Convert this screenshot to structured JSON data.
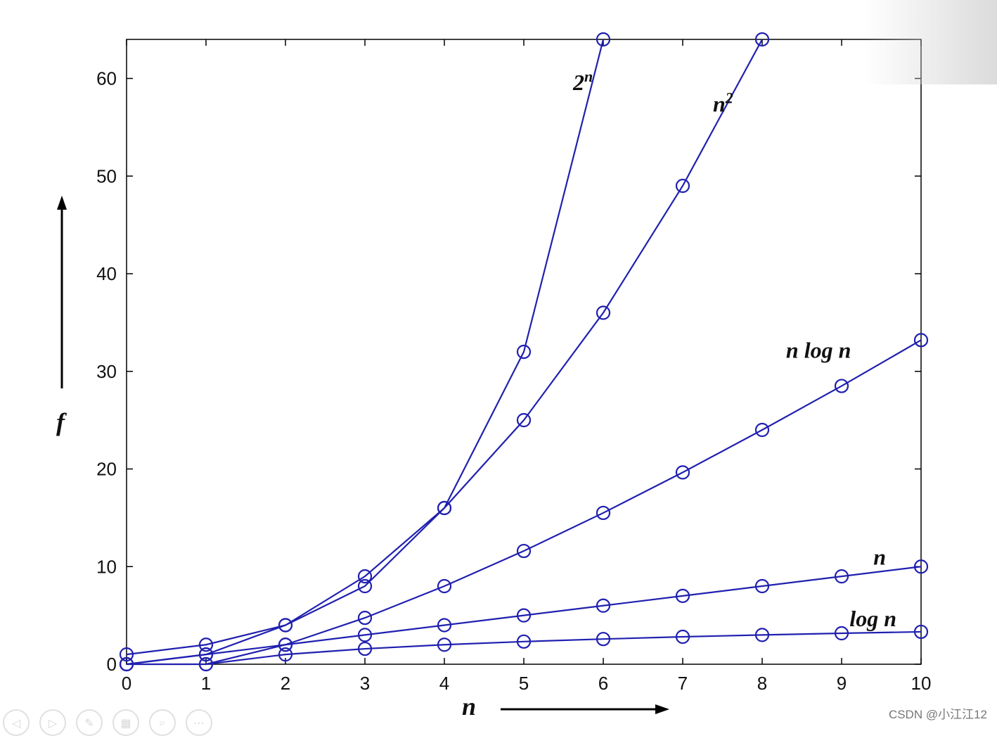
{
  "chart_data": {
    "type": "line",
    "xlim": [
      0,
      10
    ],
    "ylim": [
      0,
      64
    ],
    "x_ticks": [
      "0",
      "1",
      "2",
      "3",
      "4",
      "5",
      "6",
      "7",
      "8",
      "9",
      "10"
    ],
    "y_ticks": [
      "0",
      "10",
      "20",
      "30",
      "40",
      "50",
      "60"
    ],
    "xlabel": "n",
    "ylabel": "f",
    "marker": "circle",
    "line_color": "#2020b0",
    "series": [
      {
        "name": "2ⁿ",
        "x": [
          0,
          1,
          2,
          3,
          4,
          5,
          6
        ],
        "values": [
          1,
          2,
          4,
          8,
          16,
          32,
          64
        ]
      },
      {
        "name": "n²",
        "x": [
          0,
          1,
          2,
          3,
          4,
          5,
          6,
          7,
          8
        ],
        "values": [
          0,
          1,
          4,
          9,
          16,
          25,
          36,
          49,
          64
        ]
      },
      {
        "name": "n log n",
        "x": [
          0,
          1,
          2,
          3,
          4,
          5,
          6,
          7,
          8,
          9,
          10
        ],
        "values": [
          0,
          0,
          2,
          4.75,
          8,
          11.6,
          15.5,
          19.65,
          24,
          28.5,
          33.2
        ]
      },
      {
        "name": "n",
        "x": [
          0,
          1,
          2,
          3,
          4,
          5,
          6,
          7,
          8,
          9,
          10
        ],
        "values": [
          0,
          1,
          2,
          3,
          4,
          5,
          6,
          7,
          8,
          9,
          10
        ]
      },
      {
        "name": "log n",
        "x": [
          1,
          2,
          3,
          4,
          5,
          6,
          7,
          8,
          9,
          10
        ],
        "values": [
          0,
          1,
          1.58,
          2,
          2.32,
          2.58,
          2.81,
          3,
          3.17,
          3.32
        ]
      }
    ],
    "series_label_parts": [
      {
        "main": "2",
        "sup": "n"
      },
      {
        "main": "n",
        "sup": "2"
      },
      {
        "main": "n log n",
        "sup": ""
      },
      {
        "main": "n",
        "sup": ""
      },
      {
        "main": "log n",
        "sup": ""
      }
    ]
  },
  "watermark": "CSDN @小江江12",
  "toolbar_icons": [
    "back-icon",
    "forward-icon",
    "pen-icon",
    "slides-icon",
    "zoom-icon",
    "more-icon"
  ],
  "toolbar_glyphs": [
    "◁",
    "▷",
    "✎",
    "▦",
    "⌕",
    "⋯"
  ]
}
